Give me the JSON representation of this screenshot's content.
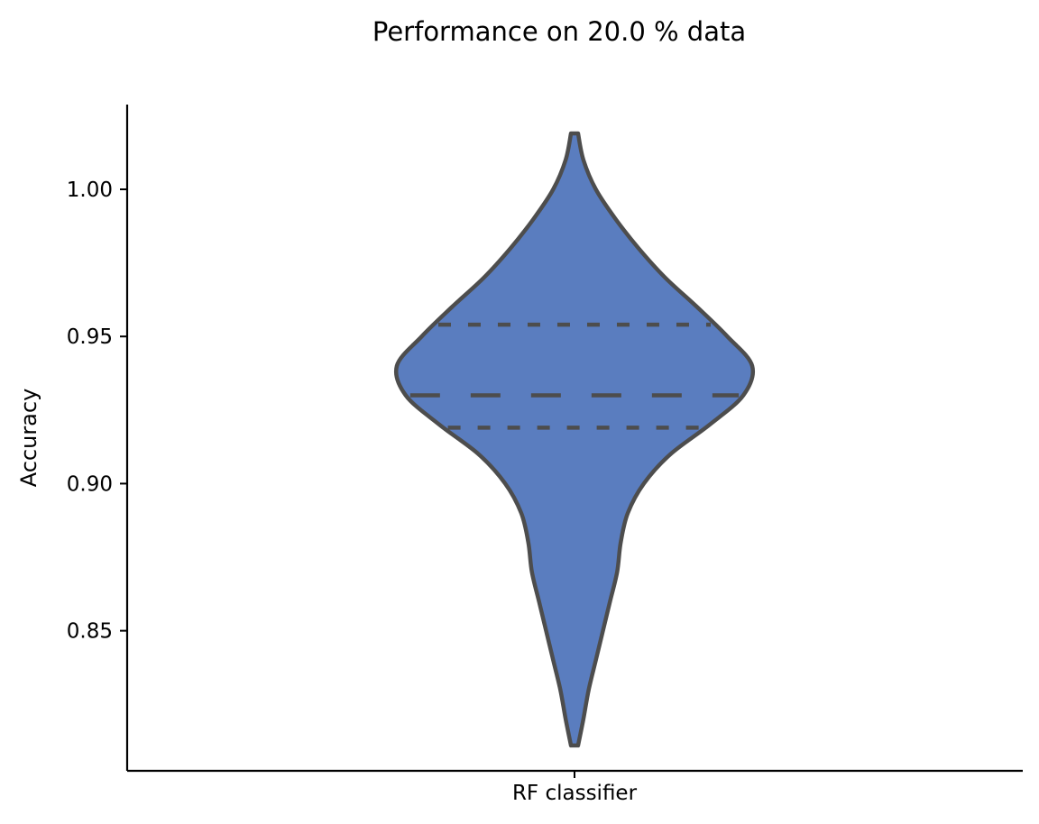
{
  "chart_data": {
    "type": "violin",
    "title": "Performance on 20.0 % data",
    "xlabel": "",
    "ylabel": "Accuracy",
    "categories": [
      "RF classifier"
    ],
    "ylim": [
      0.8024,
      1.0288
    ],
    "yticks": [
      0.85,
      0.9,
      0.95,
      1.0
    ],
    "ytick_labels": [
      "0.85",
      "0.90",
      "0.95",
      "1.00"
    ],
    "series": [
      {
        "category": "RF classifier",
        "min": 0.811,
        "max": 1.019,
        "quartiles": [
          0.919,
          0.93,
          0.954
        ],
        "inner": "quartile",
        "density": [
          [
            1.019,
            0.02
          ],
          [
            1.01,
            0.05
          ],
          [
            1.0,
            0.12
          ],
          [
            0.99,
            0.23
          ],
          [
            0.98,
            0.36
          ],
          [
            0.97,
            0.51
          ],
          [
            0.96,
            0.69
          ],
          [
            0.95,
            0.86
          ],
          [
            0.94,
            1.0
          ],
          [
            0.93,
            0.95
          ],
          [
            0.92,
            0.76
          ],
          [
            0.91,
            0.54
          ],
          [
            0.9,
            0.39
          ],
          [
            0.89,
            0.3
          ],
          [
            0.88,
            0.26
          ],
          [
            0.87,
            0.24
          ],
          [
            0.86,
            0.2
          ],
          [
            0.85,
            0.16
          ],
          [
            0.84,
            0.12
          ],
          [
            0.83,
            0.08
          ],
          [
            0.82,
            0.05
          ],
          [
            0.811,
            0.02
          ]
        ]
      }
    ],
    "colors": {
      "fill": "#5a7dbf",
      "outline": "#4d4d4d",
      "axis": "#000000"
    },
    "grid": false
  }
}
